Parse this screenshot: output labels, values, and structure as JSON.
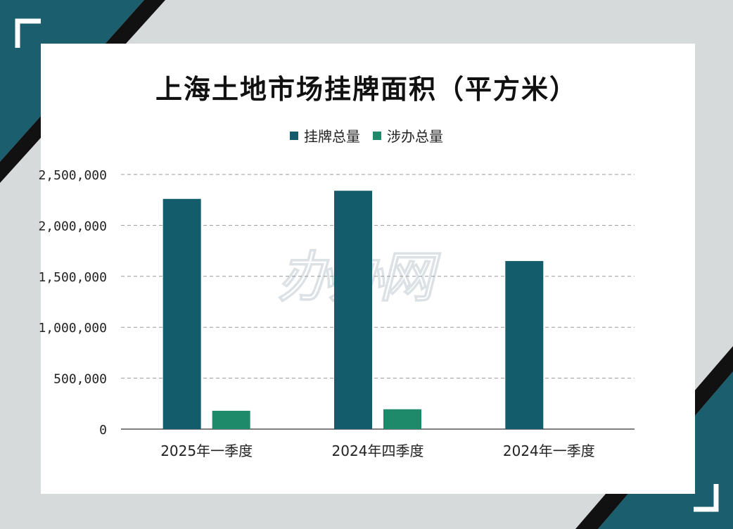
{
  "colors": {
    "frame_accent": "#1b5e6e",
    "frame_stripe": "#111111",
    "series_total": "#135c6b",
    "series_involved": "#1e8a6a",
    "grid": "#9a9a9a"
  },
  "watermark_text": "办办网",
  "chart_data": {
    "type": "bar",
    "title": "上海土地市场挂牌面积（平方米）",
    "categories": [
      "2025年一季度",
      "2024年四季度",
      "2024年一季度"
    ],
    "series": [
      {
        "name": "挂牌总量",
        "values": [
          2260000,
          2340000,
          1650000
        ]
      },
      {
        "name": "涉办总量",
        "values": [
          180000,
          195000,
          0
        ]
      }
    ],
    "ylim": [
      0,
      2500000
    ],
    "yticks": [
      0,
      500000,
      1000000,
      1500000,
      2000000,
      2500000
    ],
    "ytick_labels": [
      "0",
      "500,000",
      "1,000,000",
      "1,500,000",
      "2,000,000",
      "2,500,000"
    ],
    "grid": true,
    "legend_position": "top-center",
    "xlabel": "",
    "ylabel": ""
  }
}
